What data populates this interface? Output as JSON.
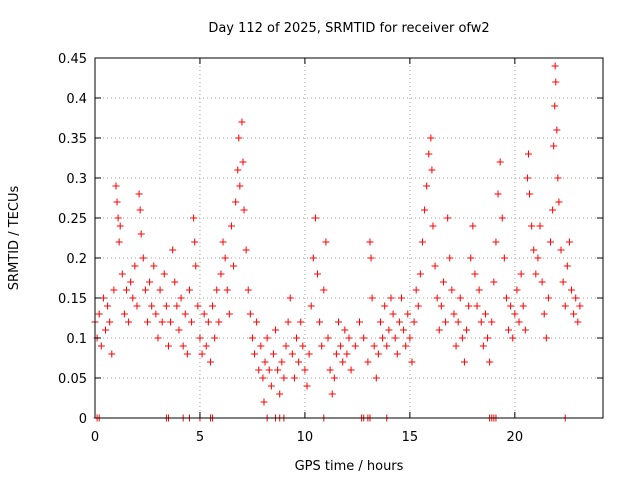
{
  "chart_data": {
    "type": "scatter",
    "title": "Day 112 of 2025, SRMTID for receiver ofw2",
    "xlabel": "GPS time / hours",
    "ylabel": "SRMTID / TECUs",
    "xlim": [
      0,
      24.2
    ],
    "ylim": [
      0,
      0.45
    ],
    "xticks": [
      0,
      5,
      10,
      15,
      20
    ],
    "xtick_labels": [
      "0",
      "5",
      "10",
      "15",
      "20"
    ],
    "yticks": [
      0,
      0.05,
      0.1,
      0.15,
      0.2,
      0.25,
      0.3,
      0.35,
      0.4,
      0.45
    ],
    "ytick_labels": [
      "0",
      "0.05",
      "0.1",
      "0.15",
      "0.2",
      "0.25",
      "0.3",
      "0.35",
      "0.4",
      "0.45"
    ],
    "grid": true,
    "legend": "none",
    "marker": "+",
    "color": "#ff0000",
    "series": [
      {
        "name": "SRMTID",
        "points": [
          [
            0.0,
            0.12
          ],
          [
            0.1,
            0.1
          ],
          [
            0.2,
            0.13
          ],
          [
            0.3,
            0.09
          ],
          [
            0.4,
            0.15
          ],
          [
            0.5,
            0.11
          ],
          [
            0.6,
            0.14
          ],
          [
            0.7,
            0.12
          ],
          [
            0.8,
            0.08
          ],
          [
            0.9,
            0.16
          ],
          [
            1.0,
            0.29
          ],
          [
            1.05,
            0.27
          ],
          [
            1.1,
            0.25
          ],
          [
            1.15,
            0.22
          ],
          [
            1.2,
            0.24
          ],
          [
            1.3,
            0.18
          ],
          [
            1.4,
            0.13
          ],
          [
            1.5,
            0.16
          ],
          [
            1.6,
            0.12
          ],
          [
            1.7,
            0.17
          ],
          [
            1.8,
            0.15
          ],
          [
            1.9,
            0.19
          ],
          [
            2.0,
            0.14
          ],
          [
            2.1,
            0.28
          ],
          [
            2.15,
            0.26
          ],
          [
            2.2,
            0.23
          ],
          [
            2.3,
            0.2
          ],
          [
            2.4,
            0.16
          ],
          [
            2.5,
            0.12
          ],
          [
            2.6,
            0.17
          ],
          [
            2.7,
            0.14
          ],
          [
            2.8,
            0.19
          ],
          [
            2.9,
            0.13
          ],
          [
            3.0,
            0.1
          ],
          [
            3.1,
            0.16
          ],
          [
            3.2,
            0.12
          ],
          [
            3.3,
            0.18
          ],
          [
            3.4,
            0.14
          ],
          [
            3.5,
            0.09
          ],
          [
            3.6,
            0.12
          ],
          [
            3.7,
            0.21
          ],
          [
            3.8,
            0.17
          ],
          [
            3.9,
            0.14
          ],
          [
            4.0,
            0.11
          ],
          [
            4.1,
            0.15
          ],
          [
            4.2,
            0.09
          ],
          [
            4.3,
            0.13
          ],
          [
            4.4,
            0.08
          ],
          [
            4.5,
            0.16
          ],
          [
            4.6,
            0.12
          ],
          [
            4.7,
            0.25
          ],
          [
            4.75,
            0.22
          ],
          [
            4.8,
            0.19
          ],
          [
            4.9,
            0.14
          ],
          [
            5.0,
            0.1
          ],
          [
            5.1,
            0.08
          ],
          [
            5.2,
            0.13
          ],
          [
            5.3,
            0.09
          ],
          [
            5.4,
            0.12
          ],
          [
            5.5,
            0.07
          ],
          [
            5.6,
            0.14
          ],
          [
            5.7,
            0.1
          ],
          [
            5.8,
            0.16
          ],
          [
            5.9,
            0.12
          ],
          [
            6.0,
            0.18
          ],
          [
            6.1,
            0.22
          ],
          [
            6.2,
            0.2
          ],
          [
            6.3,
            0.16
          ],
          [
            6.4,
            0.13
          ],
          [
            6.5,
            0.24
          ],
          [
            6.6,
            0.19
          ],
          [
            6.7,
            0.27
          ],
          [
            6.8,
            0.31
          ],
          [
            6.85,
            0.35
          ],
          [
            6.9,
            0.29
          ],
          [
            7.0,
            0.37
          ],
          [
            7.05,
            0.32
          ],
          [
            7.1,
            0.26
          ],
          [
            7.2,
            0.21
          ],
          [
            7.3,
            0.16
          ],
          [
            7.4,
            0.13
          ],
          [
            7.5,
            0.1
          ],
          [
            7.6,
            0.08
          ],
          [
            7.7,
            0.12
          ],
          [
            7.8,
            0.06
          ],
          [
            7.9,
            0.09
          ],
          [
            8.0,
            0.05
          ],
          [
            8.05,
            0.02
          ],
          [
            8.1,
            0.07
          ],
          [
            8.2,
            0.1
          ],
          [
            8.3,
            0.06
          ],
          [
            8.4,
            0.04
          ],
          [
            8.5,
            0.08
          ],
          [
            8.6,
            0.11
          ],
          [
            8.7,
            0.06
          ],
          [
            8.8,
            0.03
          ],
          [
            8.9,
            0.07
          ],
          [
            9.0,
            0.05
          ],
          [
            9.1,
            0.09
          ],
          [
            9.2,
            0.12
          ],
          [
            9.3,
            0.15
          ],
          [
            9.4,
            0.08
          ],
          [
            9.5,
            0.05
          ],
          [
            9.6,
            0.1
          ],
          [
            9.7,
            0.07
          ],
          [
            9.8,
            0.12
          ],
          [
            9.9,
            0.09
          ],
          [
            10.0,
            0.06
          ],
          [
            10.1,
            0.04
          ],
          [
            10.2,
            0.08
          ],
          [
            10.3,
            0.14
          ],
          [
            10.4,
            0.2
          ],
          [
            10.5,
            0.25
          ],
          [
            10.6,
            0.18
          ],
          [
            10.7,
            0.12
          ],
          [
            10.8,
            0.09
          ],
          [
            10.9,
            0.16
          ],
          [
            11.0,
            0.22
          ],
          [
            11.1,
            0.1
          ],
          [
            11.2,
            0.06
          ],
          [
            11.3,
            0.03
          ],
          [
            11.4,
            0.05
          ],
          [
            11.5,
            0.08
          ],
          [
            11.6,
            0.12
          ],
          [
            11.7,
            0.09
          ],
          [
            11.8,
            0.07
          ],
          [
            11.9,
            0.11
          ],
          [
            12.0,
            0.08
          ],
          [
            12.1,
            0.1
          ],
          [
            12.2,
            0.06
          ],
          [
            12.4,
            0.09
          ],
          [
            12.6,
            0.12
          ],
          [
            12.8,
            0.1
          ],
          [
            13.0,
            0.07
          ],
          [
            13.1,
            0.22
          ],
          [
            13.15,
            0.2
          ],
          [
            13.2,
            0.15
          ],
          [
            13.3,
            0.09
          ],
          [
            13.4,
            0.05
          ],
          [
            13.5,
            0.08
          ],
          [
            13.6,
            0.12
          ],
          [
            13.7,
            0.1
          ],
          [
            13.8,
            0.14
          ],
          [
            13.9,
            0.09
          ],
          [
            14.0,
            0.11
          ],
          [
            14.1,
            0.15
          ],
          [
            14.2,
            0.13
          ],
          [
            14.3,
            0.1
          ],
          [
            14.4,
            0.08
          ],
          [
            14.5,
            0.12
          ],
          [
            14.6,
            0.15
          ],
          [
            14.7,
            0.11
          ],
          [
            14.8,
            0.09
          ],
          [
            14.9,
            0.13
          ],
          [
            15.0,
            0.1
          ],
          [
            15.1,
            0.07
          ],
          [
            15.2,
            0.12
          ],
          [
            15.3,
            0.16
          ],
          [
            15.4,
            0.14
          ],
          [
            15.5,
            0.18
          ],
          [
            15.6,
            0.22
          ],
          [
            15.7,
            0.26
          ],
          [
            15.8,
            0.29
          ],
          [
            15.9,
            0.33
          ],
          [
            16.0,
            0.35
          ],
          [
            16.05,
            0.31
          ],
          [
            16.1,
            0.24
          ],
          [
            16.2,
            0.19
          ],
          [
            16.3,
            0.15
          ],
          [
            16.4,
            0.11
          ],
          [
            16.5,
            0.14
          ],
          [
            16.6,
            0.17
          ],
          [
            16.7,
            0.12
          ],
          [
            16.8,
            0.25
          ],
          [
            16.9,
            0.2
          ],
          [
            17.0,
            0.16
          ],
          [
            17.1,
            0.13
          ],
          [
            17.2,
            0.09
          ],
          [
            17.3,
            0.12
          ],
          [
            17.4,
            0.15
          ],
          [
            17.5,
            0.1
          ],
          [
            17.6,
            0.07
          ],
          [
            17.7,
            0.11
          ],
          [
            17.8,
            0.14
          ],
          [
            17.9,
            0.2
          ],
          [
            18.0,
            0.24
          ],
          [
            18.1,
            0.18
          ],
          [
            18.2,
            0.14
          ],
          [
            18.3,
            0.16
          ],
          [
            18.4,
            0.12
          ],
          [
            18.5,
            0.09
          ],
          [
            18.6,
            0.13
          ],
          [
            18.7,
            0.1
          ],
          [
            18.8,
            0.07
          ],
          [
            18.9,
            0.12
          ],
          [
            19.0,
            0.17
          ],
          [
            19.1,
            0.22
          ],
          [
            19.2,
            0.28
          ],
          [
            19.3,
            0.32
          ],
          [
            19.4,
            0.25
          ],
          [
            19.5,
            0.2
          ],
          [
            19.6,
            0.15
          ],
          [
            19.7,
            0.11
          ],
          [
            19.8,
            0.14
          ],
          [
            19.9,
            0.1
          ],
          [
            20.0,
            0.13
          ],
          [
            20.1,
            0.16
          ],
          [
            20.2,
            0.12
          ],
          [
            20.3,
            0.18
          ],
          [
            20.4,
            0.14
          ],
          [
            20.5,
            0.11
          ],
          [
            20.6,
            0.3
          ],
          [
            20.65,
            0.33
          ],
          [
            20.7,
            0.28
          ],
          [
            20.8,
            0.24
          ],
          [
            20.9,
            0.21
          ],
          [
            21.0,
            0.18
          ],
          [
            21.1,
            0.2
          ],
          [
            21.2,
            0.24
          ],
          [
            21.3,
            0.17
          ],
          [
            21.4,
            0.13
          ],
          [
            21.5,
            0.1
          ],
          [
            21.6,
            0.15
          ],
          [
            21.7,
            0.22
          ],
          [
            21.8,
            0.26
          ],
          [
            21.85,
            0.34
          ],
          [
            21.9,
            0.39
          ],
          [
            21.92,
            0.44
          ],
          [
            21.95,
            0.42
          ],
          [
            22.0,
            0.36
          ],
          [
            22.05,
            0.3
          ],
          [
            22.1,
            0.27
          ],
          [
            22.2,
            0.21
          ],
          [
            22.3,
            0.17
          ],
          [
            22.4,
            0.14
          ],
          [
            22.5,
            0.19
          ],
          [
            22.6,
            0.22
          ],
          [
            22.7,
            0.16
          ],
          [
            22.8,
            0.13
          ],
          [
            22.9,
            0.15
          ],
          [
            23.0,
            0.12
          ],
          [
            23.1,
            0.14
          ]
        ],
        "zero_markers": [
          0.1,
          0.2,
          3.4,
          3.5,
          4.2,
          4.5,
          5.0,
          5.5,
          5.6,
          8.2,
          8.6,
          8.8,
          9.0,
          10.9,
          12.7,
          12.8,
          13.0,
          13.1,
          13.9,
          18.8,
          18.9,
          19.0,
          19.1,
          22.4
        ]
      }
    ]
  }
}
